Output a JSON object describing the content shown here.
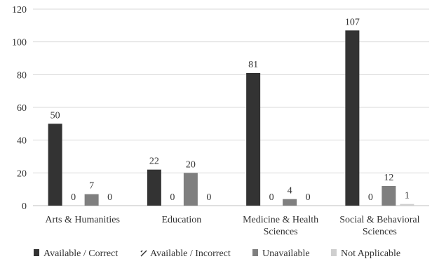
{
  "chart_data": {
    "type": "bar",
    "title": "",
    "xlabel": "",
    "ylabel": "",
    "ylim": [
      0,
      120
    ],
    "yticks": [
      0,
      20,
      40,
      60,
      80,
      100,
      120
    ],
    "grid": true,
    "legend_position": "bottom",
    "categories": [
      "Arts & Humanities",
      "Education",
      "Medicine & Health Sciences",
      "Social & Behavioral Sciences"
    ],
    "series": [
      {
        "name": "Available / Correct",
        "values": [
          50,
          22,
          81,
          107
        ],
        "color": "#333333",
        "pattern": "solid"
      },
      {
        "name": "Available / Incorrect",
        "values": [
          0,
          0,
          0,
          0
        ],
        "color": "#333333",
        "pattern": "diagonal"
      },
      {
        "name": "Unavailable",
        "values": [
          7,
          20,
          4,
          12
        ],
        "color": "#7f7f7f",
        "pattern": "solid"
      },
      {
        "name": "Not Applicable",
        "values": [
          0,
          0,
          0,
          1
        ],
        "color": "#cfcfcf",
        "pattern": "solid"
      }
    ]
  }
}
